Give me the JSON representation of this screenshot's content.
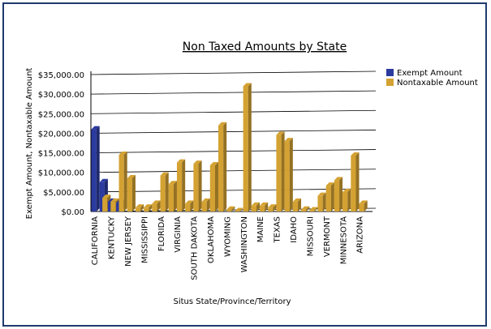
{
  "chart_data": {
    "type": "bar",
    "title": "Non Taxed Amounts by State",
    "xlabel": "Situs State/Province/Territory",
    "ylabel": "Exempt Amount, Nontaxable Amount",
    "ylim": [
      0,
      35000
    ],
    "yticks": [
      0,
      5000,
      10000,
      15000,
      20000,
      25000,
      30000,
      35000
    ],
    "ytick_labels": [
      "$0.00",
      "$5,000.00",
      "$10,000.00",
      "$15,000.00",
      "$20,000.00",
      "$25,000.00",
      "$30,000.00",
      "$35,000.00"
    ],
    "grid": true,
    "legend_position": "top-right",
    "categories": [
      "CALIFORNIA",
      "",
      "KENTUCKY",
      "",
      "NEW JERSEY",
      "",
      "MISSISSIPPI",
      "",
      "FLORIDA",
      "",
      "VIRGINIA",
      "",
      "SOUTH DAKOTA",
      "",
      "OKLAHOMA",
      "",
      "WYOMING",
      "",
      "WASHINGTON",
      "",
      "MAINE",
      "",
      "TEXAS",
      "",
      "IDAHO",
      "",
      "MISSOURI",
      "",
      "VERMONT",
      "",
      "MINNESOTA",
      "",
      "ARIZONA",
      ""
    ],
    "series": [
      {
        "name": "Exempt Amount",
        "color": "#2b3a9e",
        "values": [
          21000,
          7500,
          2500,
          2200,
          0,
          0,
          0,
          0,
          0,
          0,
          0,
          0,
          0,
          0,
          0,
          0,
          0,
          0,
          0,
          0,
          0,
          0,
          0,
          0,
          0,
          0,
          0,
          0,
          0,
          0,
          0,
          0,
          0,
          0
        ]
      },
      {
        "name": "Nontaxable Amount",
        "color": "#d4a232",
        "values": [
          0,
          3500,
          2500,
          14500,
          8500,
          1000,
          1000,
          2000,
          9200,
          7000,
          12500,
          2000,
          12200,
          2500,
          11800,
          22000,
          500,
          100,
          32000,
          1500,
          1500,
          1000,
          19600,
          18000,
          2500,
          500,
          300,
          4000,
          6600,
          8000,
          5000,
          14300,
          2000,
          0
        ]
      }
    ]
  }
}
